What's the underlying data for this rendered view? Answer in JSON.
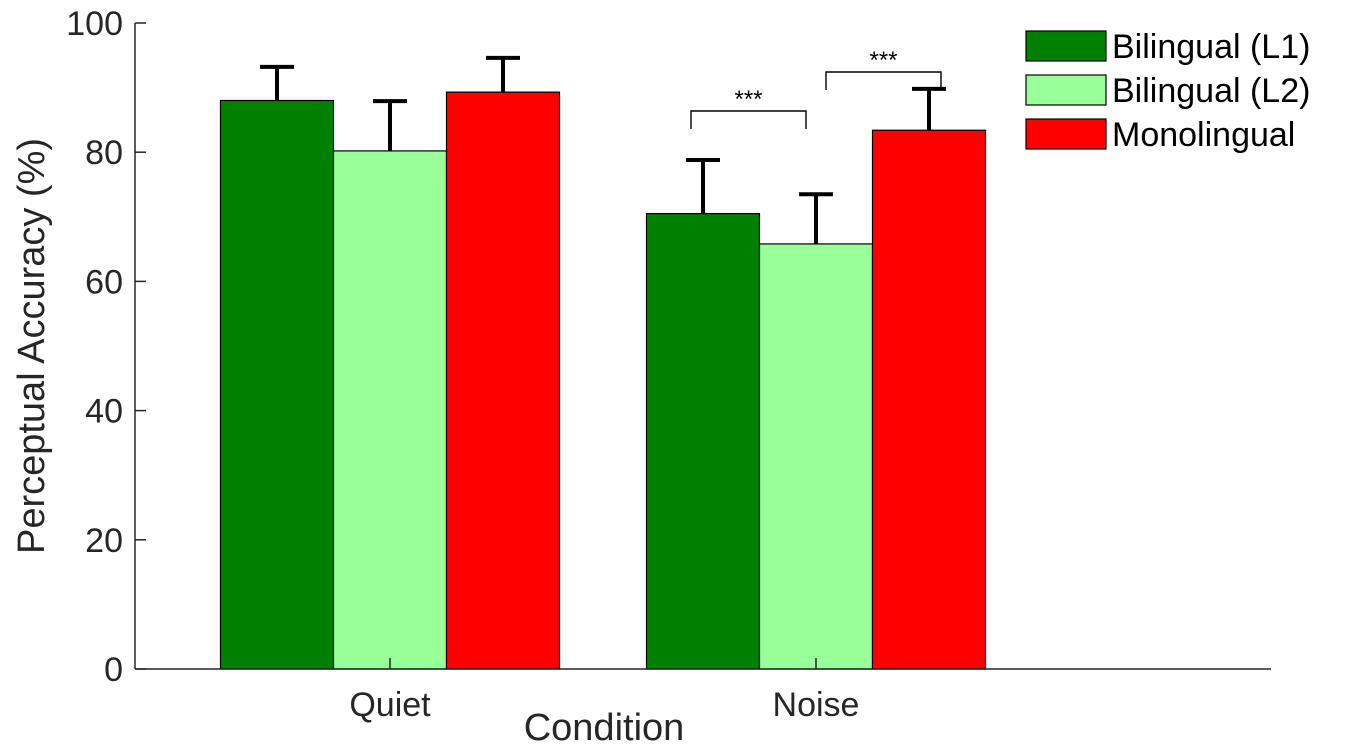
{
  "chart_data": {
    "type": "bar",
    "categories": [
      "Quiet",
      "Noise"
    ],
    "series": [
      {
        "name": "Bilingual (L1)",
        "color": "#008000",
        "values": [
          88,
          70.5
        ],
        "errors": [
          5.2,
          8.3
        ]
      },
      {
        "name": "Bilingual (L2)",
        "color": "#99ff99",
        "values": [
          80.2,
          65.8
        ],
        "errors": [
          7.7,
          7.7
        ]
      },
      {
        "name": "Monolingual",
        "color": "#ff0000",
        "values": [
          89.3,
          83.4
        ],
        "errors": [
          5.3,
          6.4
        ]
      }
    ],
    "title": "",
    "xlabel": "Condition",
    "ylabel": "Perceptual Accuracy (%)",
    "ylim": [
      0,
      100
    ],
    "yticks": [
      "0",
      "20",
      "40",
      "60",
      "80",
      "100"
    ],
    "legend_position": "top-right",
    "grid": false,
    "annotations": [
      {
        "category": "Noise",
        "from_series": 0,
        "to_series": 1,
        "label": "***"
      },
      {
        "category": "Noise",
        "from_series": 1,
        "to_series": 2,
        "label": "***"
      }
    ]
  }
}
